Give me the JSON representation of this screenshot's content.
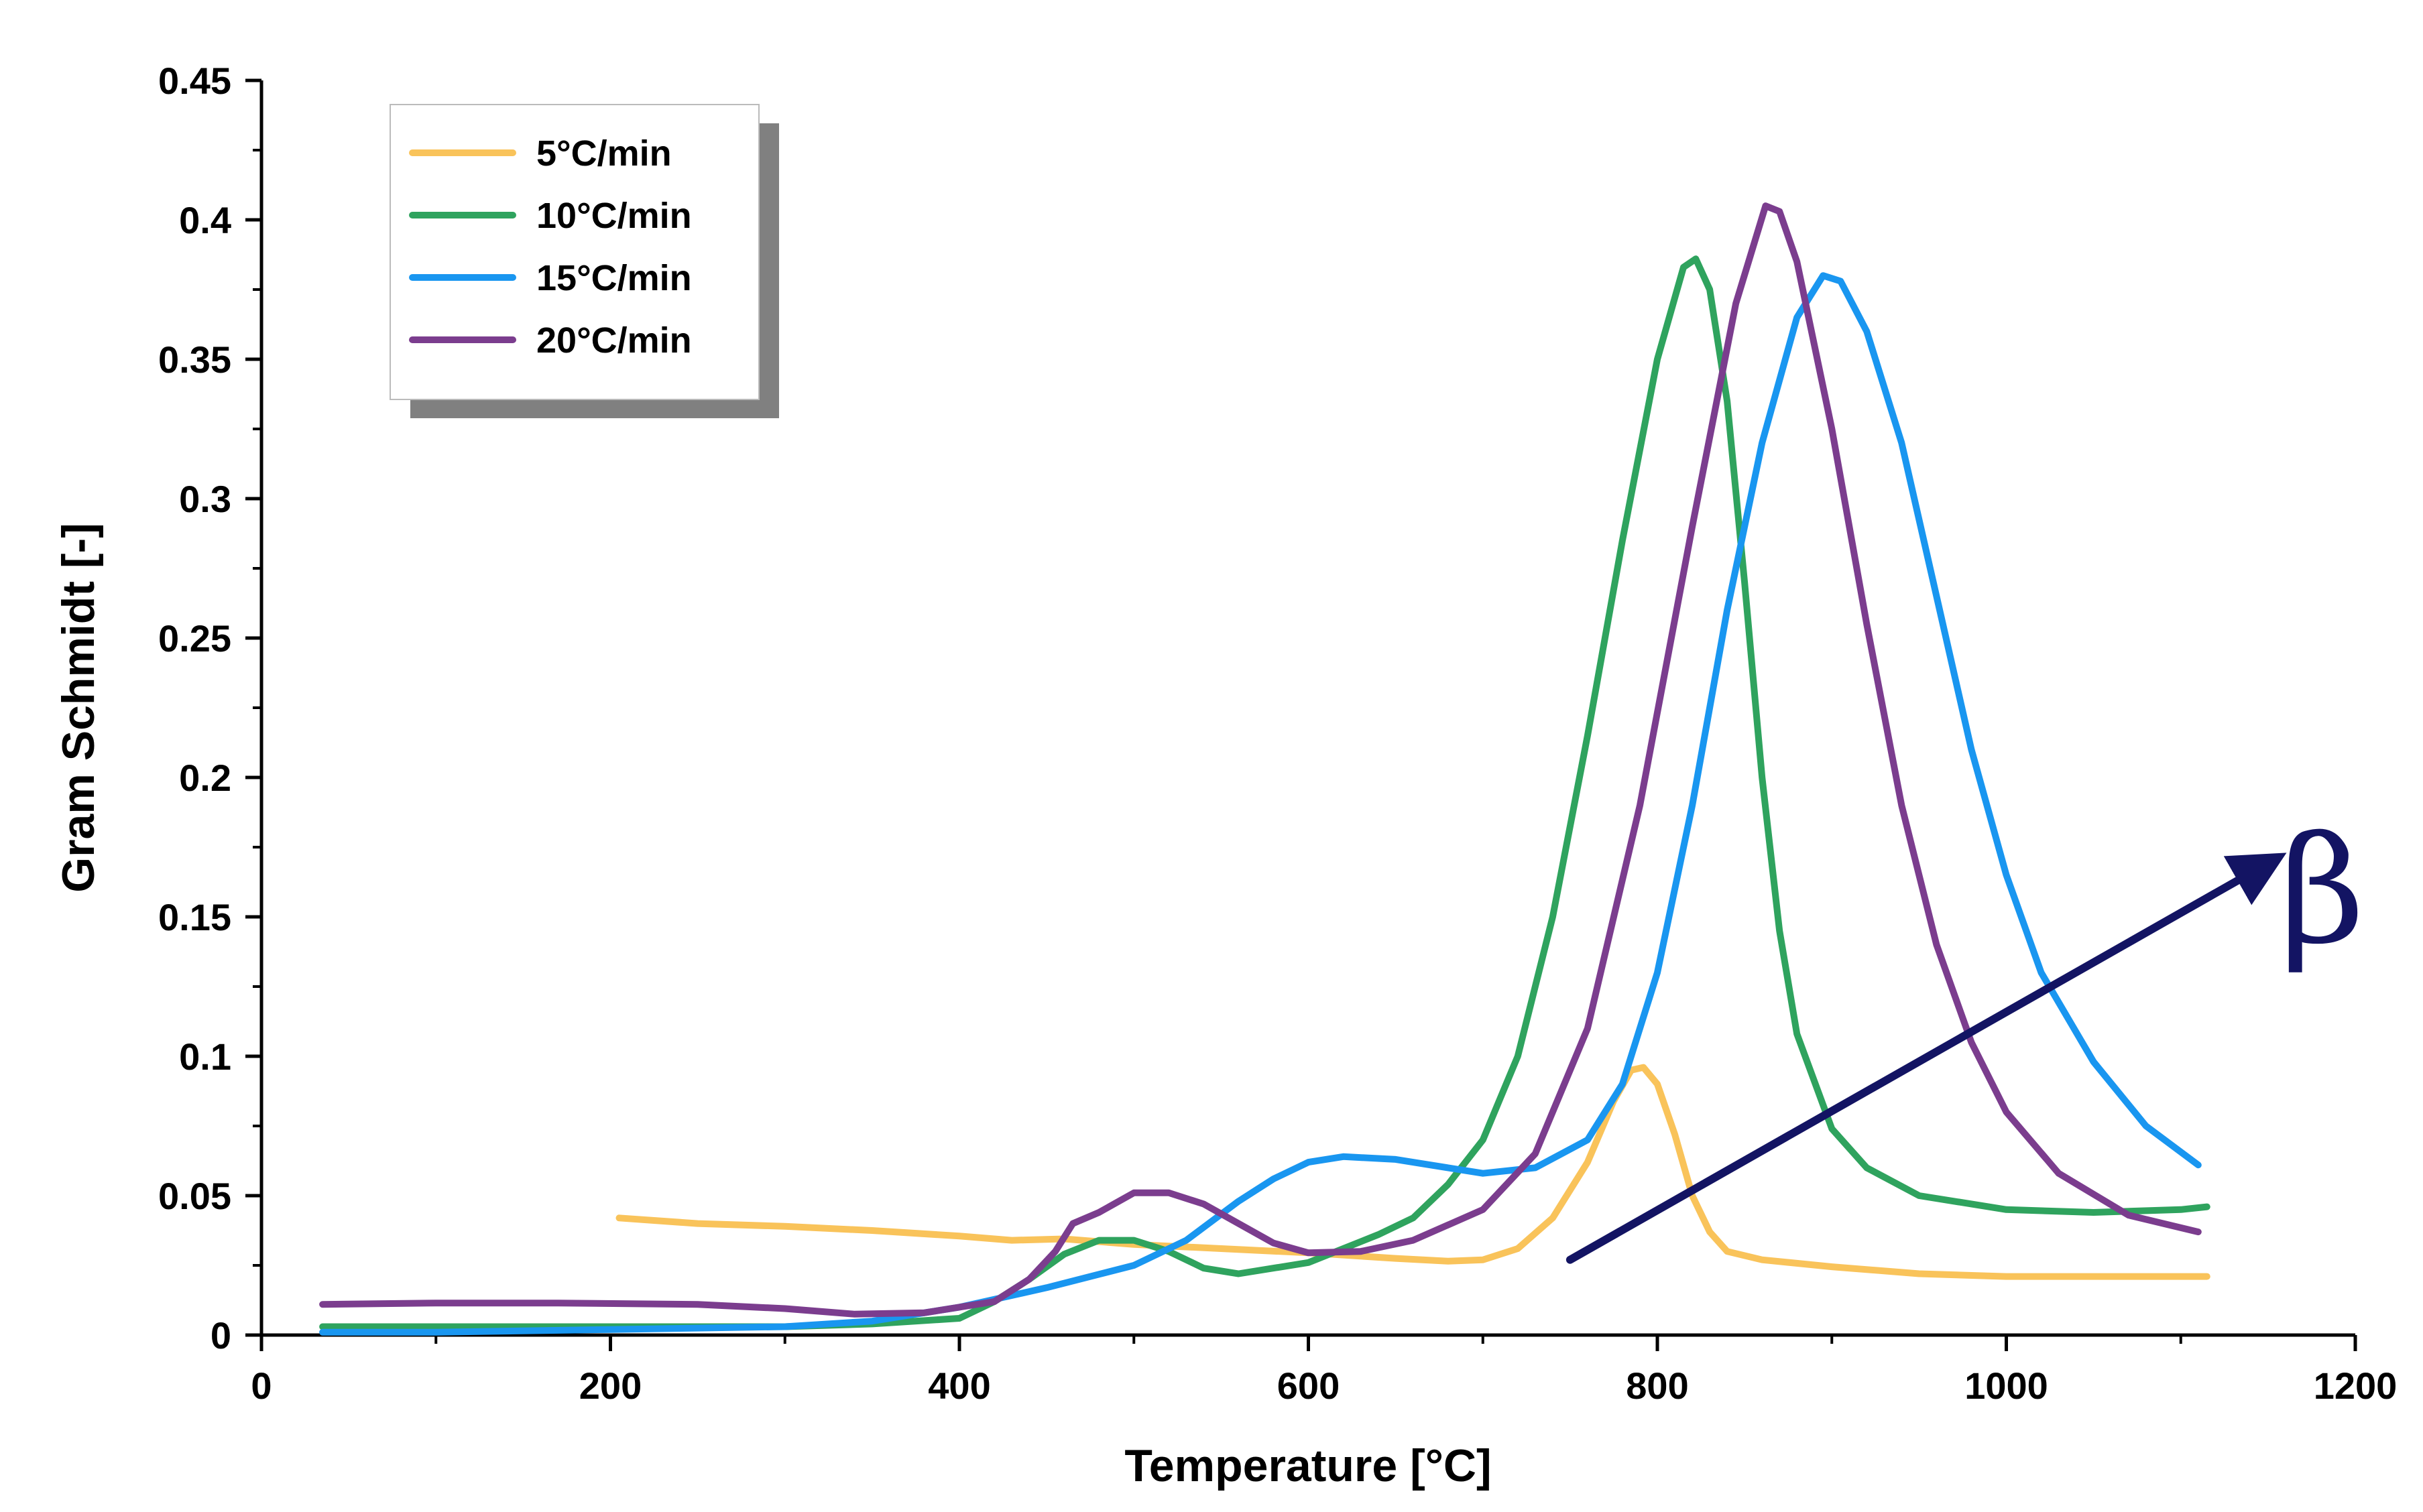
{
  "chart_data": {
    "type": "line",
    "title": "",
    "xlabel": "Temperature [°C]",
    "ylabel": "Gram Schmidt [-]",
    "xlim": [
      0,
      1200
    ],
    "ylim": [
      0,
      0.45
    ],
    "xticks": [
      "0",
      "200",
      "400",
      "600",
      "800",
      "1000",
      "1200"
    ],
    "yticks": [
      "0",
      "0.05",
      "0.1",
      "0.15",
      "0.2",
      "0.25",
      "0.3",
      "0.35",
      "0.4",
      "0.45"
    ],
    "grid": false,
    "legend_position": "top-left",
    "series": [
      {
        "name": "5°C/min",
        "color": "#f9c35a",
        "points": [
          [
            205,
            0.042
          ],
          [
            250,
            0.04
          ],
          [
            300,
            0.039
          ],
          [
            350,
            0.0375
          ],
          [
            400,
            0.0355
          ],
          [
            430,
            0.034
          ],
          [
            460,
            0.0345
          ],
          [
            500,
            0.0325
          ],
          [
            550,
            0.031
          ],
          [
            600,
            0.0295
          ],
          [
            650,
            0.0275
          ],
          [
            680,
            0.0265
          ],
          [
            700,
            0.027
          ],
          [
            720,
            0.031
          ],
          [
            740,
            0.042
          ],
          [
            760,
            0.062
          ],
          [
            775,
            0.084
          ],
          [
            785,
            0.095
          ],
          [
            792,
            0.096
          ],
          [
            800,
            0.09
          ],
          [
            810,
            0.072
          ],
          [
            820,
            0.05
          ],
          [
            830,
            0.037
          ],
          [
            840,
            0.03
          ],
          [
            860,
            0.027
          ],
          [
            900,
            0.0245
          ],
          [
            950,
            0.022
          ],
          [
            1000,
            0.021
          ],
          [
            1050,
            0.021
          ],
          [
            1115,
            0.021
          ]
        ]
      },
      {
        "name": "10°C/min",
        "color": "#2fa35e",
        "points": [
          [
            35,
            0.003
          ],
          [
            100,
            0.003
          ],
          [
            200,
            0.003
          ],
          [
            300,
            0.003
          ],
          [
            350,
            0.004
          ],
          [
            400,
            0.006
          ],
          [
            420,
            0.012
          ],
          [
            440,
            0.02
          ],
          [
            460,
            0.029
          ],
          [
            480,
            0.034
          ],
          [
            500,
            0.034
          ],
          [
            520,
            0.03
          ],
          [
            540,
            0.024
          ],
          [
            560,
            0.022
          ],
          [
            600,
            0.026
          ],
          [
            640,
            0.036
          ],
          [
            660,
            0.042
          ],
          [
            680,
            0.054
          ],
          [
            700,
            0.07
          ],
          [
            720,
            0.1
          ],
          [
            740,
            0.15
          ],
          [
            760,
            0.215
          ],
          [
            780,
            0.285
          ],
          [
            800,
            0.35
          ],
          [
            815,
            0.383
          ],
          [
            822,
            0.386
          ],
          [
            830,
            0.375
          ],
          [
            840,
            0.335
          ],
          [
            850,
            0.27
          ],
          [
            860,
            0.2
          ],
          [
            870,
            0.145
          ],
          [
            880,
            0.108
          ],
          [
            900,
            0.074
          ],
          [
            920,
            0.06
          ],
          [
            950,
            0.05
          ],
          [
            1000,
            0.045
          ],
          [
            1050,
            0.044
          ],
          [
            1100,
            0.045
          ],
          [
            1115,
            0.046
          ]
        ]
      },
      {
        "name": "15°C/min",
        "color": "#1996f0",
        "points": [
          [
            35,
            0.001
          ],
          [
            100,
            0.001
          ],
          [
            200,
            0.002
          ],
          [
            300,
            0.003
          ],
          [
            350,
            0.005
          ],
          [
            400,
            0.01
          ],
          [
            450,
            0.017
          ],
          [
            500,
            0.025
          ],
          [
            530,
            0.034
          ],
          [
            560,
            0.048
          ],
          [
            580,
            0.056
          ],
          [
            600,
            0.062
          ],
          [
            620,
            0.064
          ],
          [
            650,
            0.063
          ],
          [
            680,
            0.06
          ],
          [
            700,
            0.058
          ],
          [
            730,
            0.06
          ],
          [
            760,
            0.07
          ],
          [
            780,
            0.09
          ],
          [
            800,
            0.13
          ],
          [
            820,
            0.19
          ],
          [
            840,
            0.26
          ],
          [
            860,
            0.32
          ],
          [
            880,
            0.365
          ],
          [
            895,
            0.38
          ],
          [
            905,
            0.378
          ],
          [
            920,
            0.36
          ],
          [
            940,
            0.32
          ],
          [
            960,
            0.265
          ],
          [
            980,
            0.21
          ],
          [
            1000,
            0.165
          ],
          [
            1020,
            0.13
          ],
          [
            1050,
            0.098
          ],
          [
            1080,
            0.075
          ],
          [
            1110,
            0.061
          ]
        ]
      },
      {
        "name": "20°C/min",
        "color": "#7b3d8e",
        "points": [
          [
            35,
            0.011
          ],
          [
            100,
            0.0115
          ],
          [
            170,
            0.0115
          ],
          [
            250,
            0.011
          ],
          [
            300,
            0.0095
          ],
          [
            340,
            0.0075
          ],
          [
            380,
            0.008
          ],
          [
            420,
            0.012
          ],
          [
            440,
            0.02
          ],
          [
            455,
            0.03
          ],
          [
            465,
            0.04
          ],
          [
            480,
            0.044
          ],
          [
            500,
            0.051
          ],
          [
            520,
            0.051
          ],
          [
            540,
            0.047
          ],
          [
            560,
            0.04
          ],
          [
            580,
            0.033
          ],
          [
            600,
            0.0295
          ],
          [
            630,
            0.03
          ],
          [
            660,
            0.034
          ],
          [
            700,
            0.045
          ],
          [
            730,
            0.065
          ],
          [
            760,
            0.11
          ],
          [
            790,
            0.19
          ],
          [
            820,
            0.29
          ],
          [
            845,
            0.37
          ],
          [
            862,
            0.405
          ],
          [
            870,
            0.403
          ],
          [
            880,
            0.385
          ],
          [
            900,
            0.325
          ],
          [
            920,
            0.255
          ],
          [
            940,
            0.19
          ],
          [
            960,
            0.14
          ],
          [
            980,
            0.105
          ],
          [
            1000,
            0.08
          ],
          [
            1030,
            0.058
          ],
          [
            1070,
            0.043
          ],
          [
            1110,
            0.037
          ]
        ]
      }
    ],
    "annotations": [
      {
        "text": "β",
        "color": "#131463",
        "from": [
          750,
          0.027
        ],
        "to": [
          1155,
          0.171
        ]
      }
    ]
  }
}
